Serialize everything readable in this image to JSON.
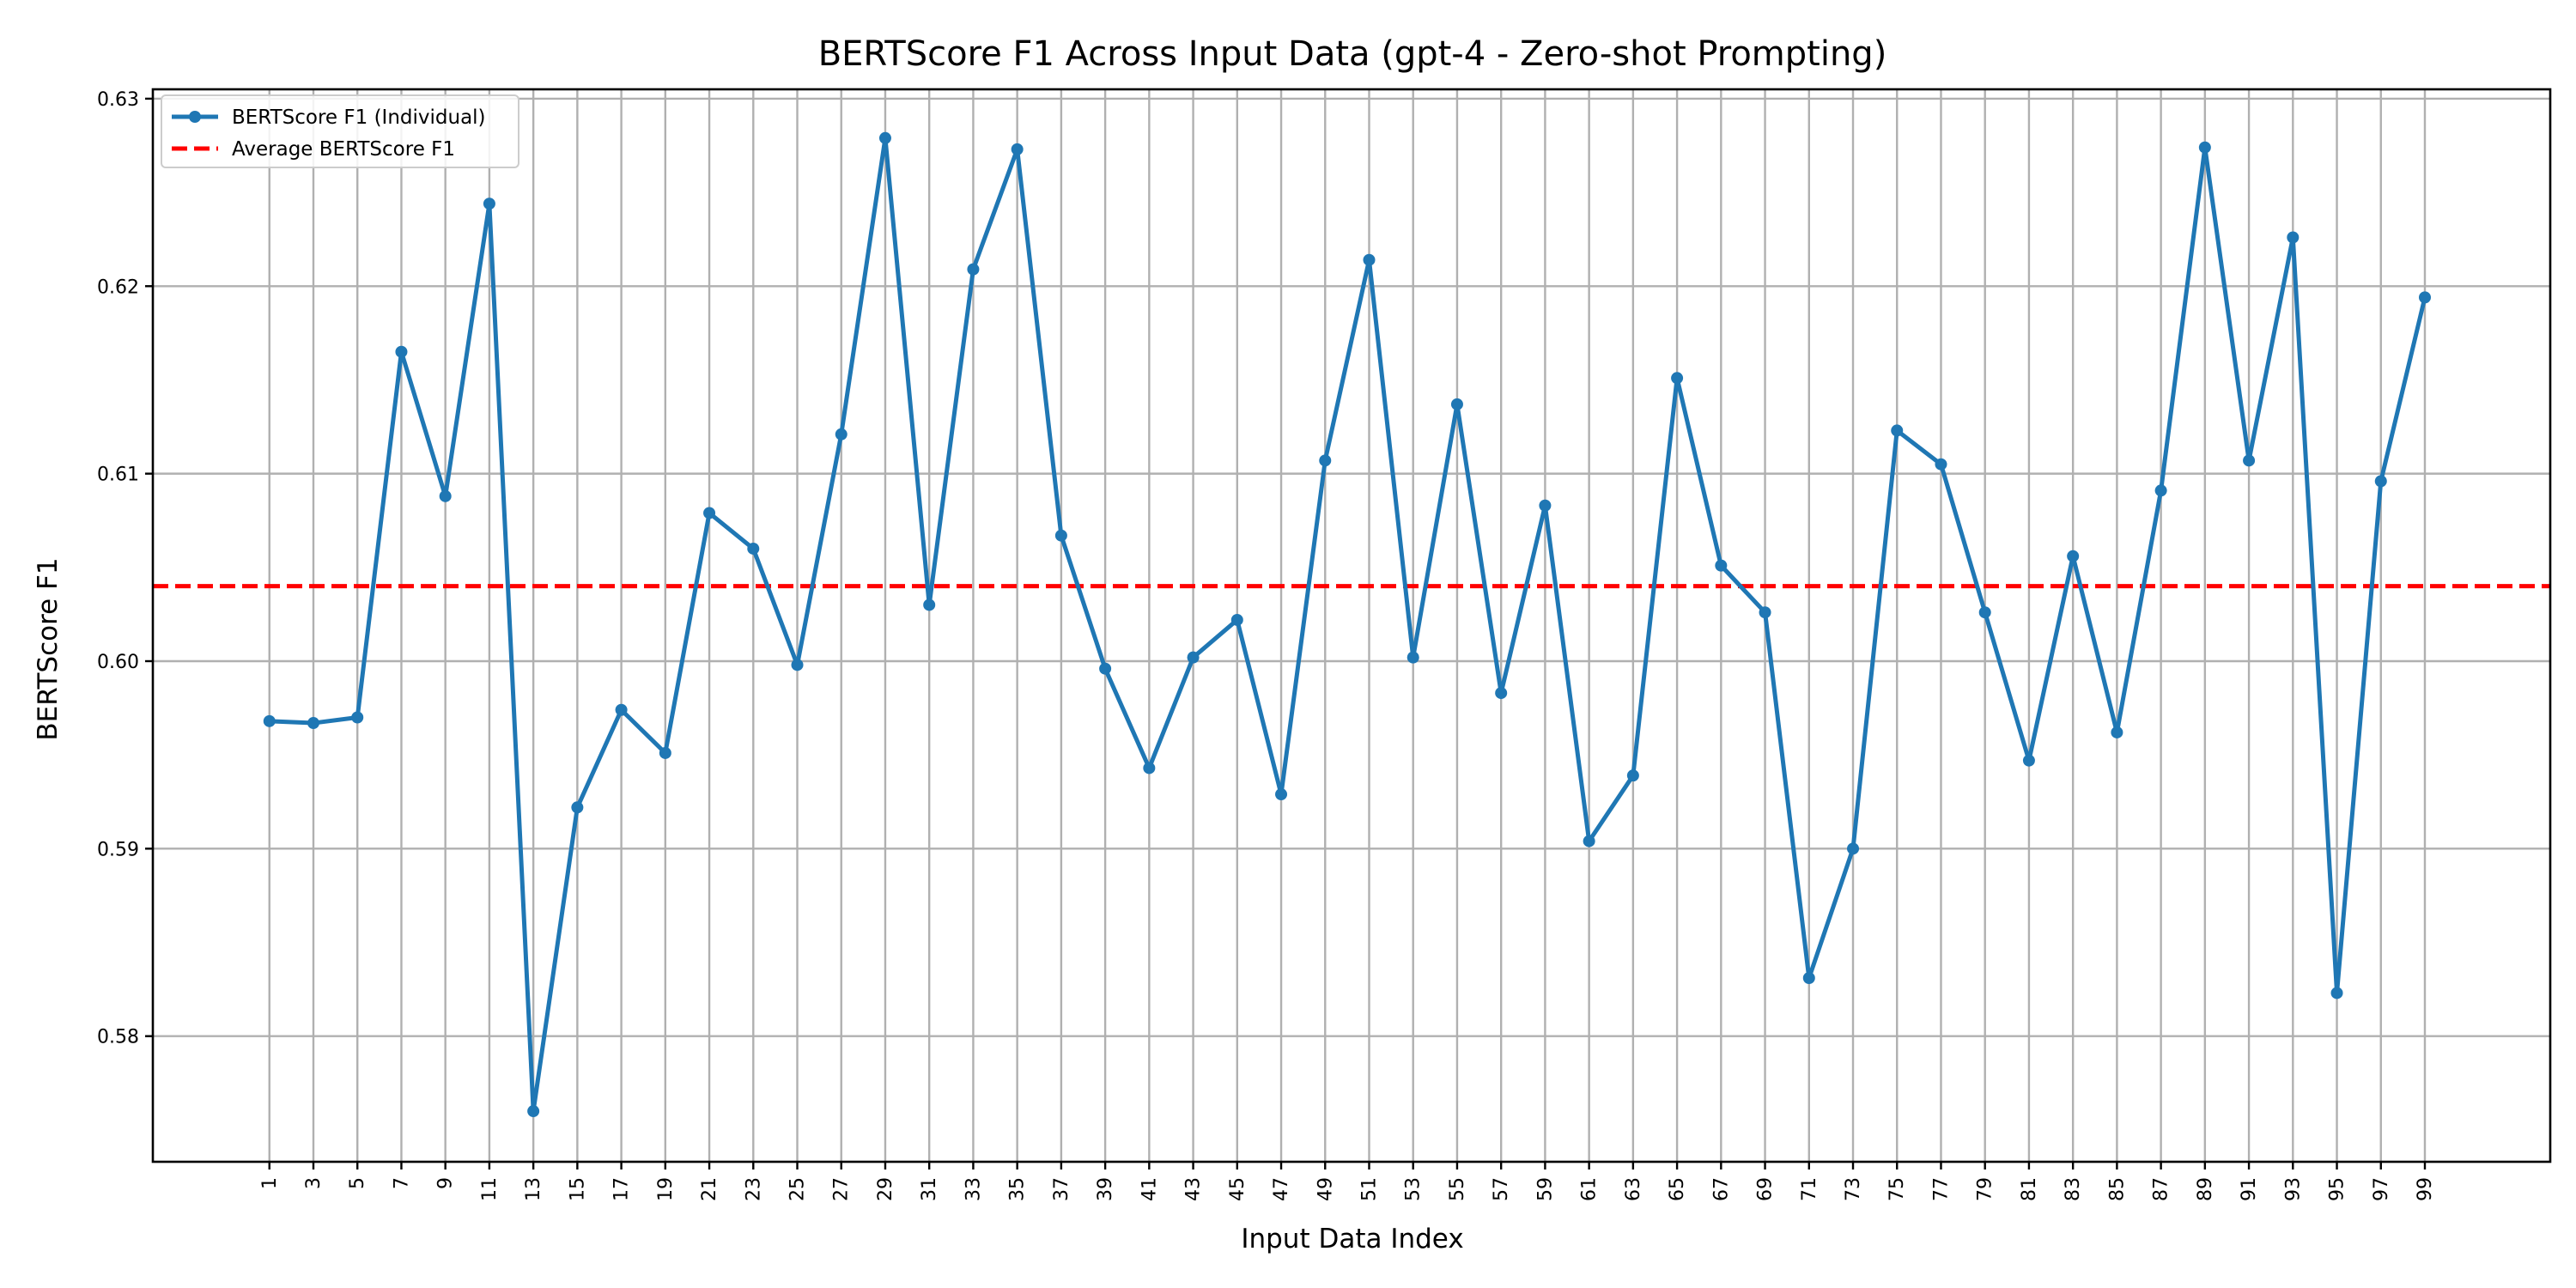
{
  "chart_data": {
    "type": "line",
    "title": "BERTScore F1 Across Input Data (gpt-4 - Zero-shot Prompting)",
    "xlabel": "Input Data Index",
    "ylabel": "BERTScore F1",
    "x": [
      1,
      3,
      5,
      7,
      9,
      11,
      13,
      15,
      17,
      19,
      21,
      23,
      25,
      27,
      29,
      31,
      33,
      35,
      37,
      39,
      41,
      43,
      45,
      47,
      49,
      51,
      53,
      55,
      57,
      59,
      61,
      63,
      65,
      67,
      69,
      71,
      73,
      75,
      77,
      79,
      81,
      83,
      85,
      87,
      89,
      91,
      93,
      95,
      97,
      99
    ],
    "xticks": [
      "1",
      "3",
      "5",
      "7",
      "9",
      "11",
      "13",
      "15",
      "17",
      "19",
      "21",
      "23",
      "25",
      "27",
      "29",
      "31",
      "33",
      "35",
      "37",
      "39",
      "41",
      "43",
      "45",
      "47",
      "49",
      "51",
      "53",
      "55",
      "57",
      "59",
      "61",
      "63",
      "65",
      "67",
      "69",
      "71",
      "73",
      "75",
      "77",
      "79",
      "81",
      "83",
      "85",
      "87",
      "89",
      "91",
      "93",
      "95",
      "97",
      "99"
    ],
    "xlim": [
      -4.3,
      104.7
    ],
    "ylim": [
      0.5733,
      0.6305
    ],
    "yticks": [
      0.58,
      0.59,
      0.6,
      0.61,
      0.62,
      0.63
    ],
    "ytick_labels": [
      "0.58",
      "0.59",
      "0.60",
      "0.61",
      "0.62",
      "0.63"
    ],
    "grid": true,
    "legend_position": "top-left",
    "series": [
      {
        "name": "BERTScore F1 (Individual)",
        "color": "#1f77b4",
        "style": "solid line with circle markers",
        "values": [
          0.5968,
          0.5967,
          0.597,
          0.6165,
          0.6088,
          0.6244,
          0.576,
          0.5922,
          0.5974,
          0.5951,
          0.6079,
          0.606,
          0.5998,
          0.6121,
          0.6279,
          0.603,
          0.6209,
          0.6273,
          0.6067,
          0.5996,
          0.5943,
          0.6002,
          0.6022,
          0.5929,
          0.6107,
          0.6214,
          0.6002,
          0.6137,
          0.5983,
          0.6083,
          0.5904,
          0.5939,
          0.6151,
          0.6051,
          0.6026,
          0.5831,
          0.59,
          0.6123,
          0.6105,
          0.6026,
          0.5947,
          0.6056,
          0.5962,
          0.6091,
          0.6274,
          0.6107,
          0.6226,
          0.5823,
          0.6096,
          0.6194
        ]
      },
      {
        "name": "Average BERTScore F1",
        "color": "#ff0000",
        "style": "dashed horizontal line",
        "value": 0.604
      }
    ]
  }
}
